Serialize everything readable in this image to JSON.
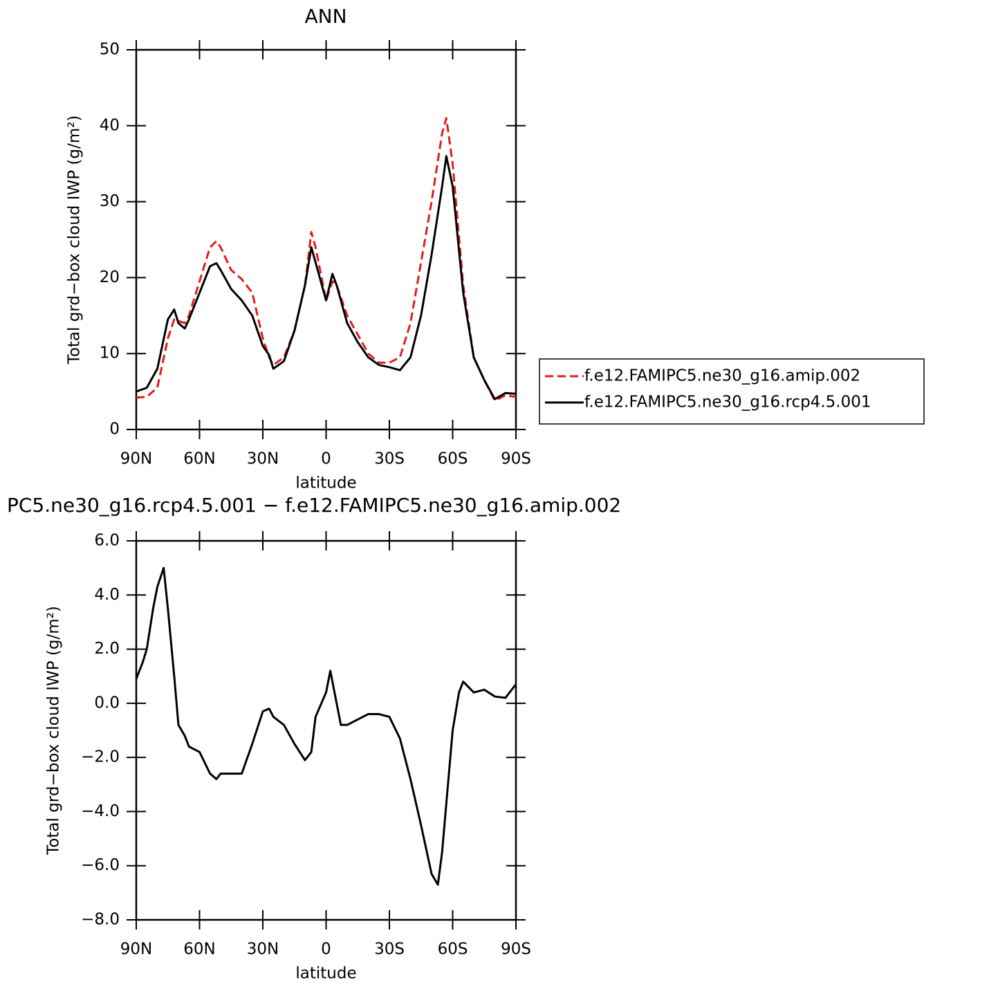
{
  "chart_data": [
    {
      "type": "line",
      "title": "ANN",
      "xlabel": "latitude",
      "ylabel": "Total grd−box cloud IWP (g/m²)",
      "x": [
        90,
        85,
        80,
        75,
        72,
        70,
        67,
        65,
        60,
        55,
        52,
        50,
        45,
        40,
        35,
        30,
        27,
        25,
        20,
        15,
        10,
        7,
        5,
        0,
        -3,
        -5,
        -10,
        -15,
        -20,
        -25,
        -30,
        -35,
        -40,
        -45,
        -50,
        -55,
        -57,
        -60,
        -65,
        -70,
        -75,
        -80,
        -85,
        -90
      ],
      "series": [
        {
          "name": "f.e12.FAMIPC5.ne30_g16.amip.002",
          "color": "#e41a1c",
          "line_style": "dashed",
          "values": [
            4.2,
            4.3,
            5.5,
            12,
            14.5,
            14.3,
            14,
            15,
            19.5,
            24,
            24.8,
            24,
            21,
            19.8,
            18,
            12,
            9.5,
            8.5,
            9.5,
            13,
            19,
            26,
            24,
            17,
            19.5,
            19,
            15,
            12.5,
            10,
            8.8,
            8.8,
            9.5,
            14,
            22,
            30,
            39,
            41,
            35,
            19,
            9.5,
            6.5,
            3.8,
            4.5,
            4.3
          ]
        },
        {
          "name": "f.e12.FAMIPC5.ne30_g16.rcp4.5.001",
          "color": "#000000",
          "line_style": "solid",
          "values": [
            5.0,
            5.5,
            8,
            14.5,
            15.8,
            14,
            13.3,
            14.5,
            18,
            21.5,
            21.9,
            21,
            18.5,
            17,
            15,
            11,
            9.8,
            8,
            9,
            13,
            19,
            24,
            22,
            17,
            20.5,
            19,
            14,
            11.5,
            9.5,
            8.5,
            8.2,
            7.8,
            9.5,
            15,
            23,
            32,
            36,
            32,
            18,
            9.5,
            6.5,
            4.0,
            4.8,
            4.7
          ]
        }
      ],
      "xlim": [
        90,
        -90
      ],
      "xticks": [
        {
          "value": 90,
          "label": "90N"
        },
        {
          "value": 60,
          "label": "60N"
        },
        {
          "value": 30,
          "label": "30N"
        },
        0,
        {
          "value": -30,
          "label": "30S"
        },
        {
          "value": -60,
          "label": "60S"
        },
        {
          "value": -90,
          "label": "90S"
        }
      ],
      "ylim": [
        0,
        50
      ],
      "yticks": [
        0,
        10,
        20,
        30,
        40,
        50
      ],
      "legend": "right"
    },
    {
      "type": "line",
      "title": "PC5.ne30_g16.rcp4.5.001 − f.e12.FAMIPC5.ne30_g16.amip.002",
      "xlabel": "latitude",
      "ylabel": "Total grd−box cloud IWP (g/m²)",
      "x": [
        90,
        87,
        85,
        82,
        80,
        77,
        75,
        72,
        70,
        67,
        65,
        60,
        55,
        52,
        50,
        45,
        40,
        35,
        30,
        27,
        25,
        20,
        15,
        10,
        7,
        5,
        0,
        -2,
        -5,
        -7,
        -10,
        -15,
        -20,
        -25,
        -30,
        -35,
        -40,
        -45,
        -50,
        -53,
        -55,
        -60,
        -63,
        -65,
        -70,
        -75,
        -80,
        -85,
        -90
      ],
      "values": [
        0.9,
        1.5,
        2.0,
        3.5,
        4.3,
        5.0,
        3.5,
        1.0,
        -0.8,
        -1.2,
        -1.6,
        -1.8,
        -2.6,
        -2.8,
        -2.6,
        -2.6,
        -2.6,
        -1.5,
        -0.3,
        -0.2,
        -0.5,
        -0.8,
        -1.5,
        -2.1,
        -1.8,
        -0.5,
        0.4,
        1.2,
        0.0,
        -0.8,
        -0.8,
        -0.6,
        -0.4,
        -0.4,
        -0.5,
        -1.3,
        -2.8,
        -4.5,
        -6.3,
        -6.7,
        -5.5,
        -1.0,
        0.4,
        0.8,
        0.4,
        0.5,
        0.25,
        0.2,
        0.7
      ],
      "color": "#000000",
      "xlim": [
        90,
        -90
      ],
      "xticks": [
        {
          "value": 90,
          "label": "90N"
        },
        {
          "value": 60,
          "label": "60N"
        },
        {
          "value": 30,
          "label": "30N"
        },
        0,
        {
          "value": -30,
          "label": "30S"
        },
        {
          "value": -60,
          "label": "60S"
        },
        {
          "value": -90,
          "label": "90S"
        }
      ],
      "ylim": [
        -8,
        6
      ],
      "yticks": [
        {
          "value": -8,
          "label": "−8.0"
        },
        {
          "value": -6,
          "label": "−6.0"
        },
        {
          "value": -4,
          "label": "−4.0"
        },
        {
          "value": -2,
          "label": "−2.0"
        },
        {
          "value": 0,
          "label": "0.0"
        },
        {
          "value": 2,
          "label": "2.0"
        },
        {
          "value": 4,
          "label": "4.0"
        },
        {
          "value": 6,
          "label": "6.0"
        }
      ]
    }
  ]
}
